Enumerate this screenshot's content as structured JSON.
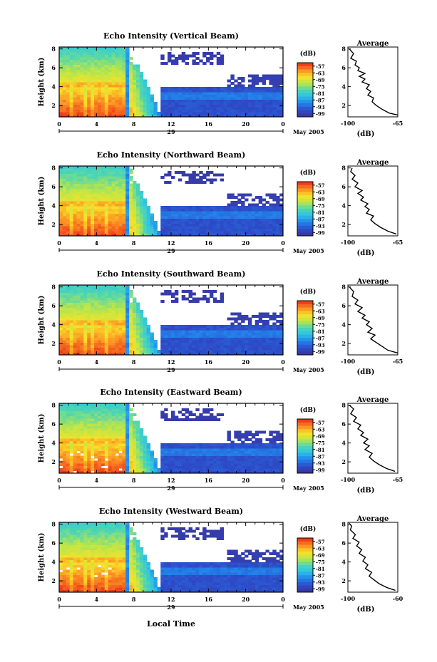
{
  "figure": {
    "xlabel": "Local Time",
    "date_label": "May 2005",
    "day_label": "29",
    "colorbar_unit": "(dB)",
    "avg_title": "Average",
    "avg_xlabel": "(dB)",
    "ylabel": "Height (km)"
  },
  "chart_data": [
    {
      "type": "heatmap",
      "title": "Echo Intensity (Vertical Beam)",
      "xlabel": "Local Time",
      "ylabel": "Height (km)",
      "x_ticks": [
        "0",
        "4",
        "8",
        "12",
        "16",
        "20",
        "0"
      ],
      "x_range": [
        0,
        24
      ],
      "y_ticks": [
        "2",
        "4",
        "6",
        "8"
      ],
      "y_range": [
        0.8,
        8.2
      ],
      "colorbar": {
        "label": "(dB)",
        "ticks": [
          "-57",
          "-63",
          "-69",
          "-75",
          "-81",
          "-87",
          "-93",
          "-99"
        ],
        "range": [
          -102,
          -54
        ]
      },
      "average_profile": {
        "title": "Average",
        "xlabel": "(dB)",
        "x_ticks": [
          "-100",
          "-65"
        ],
        "x_range": [
          -100,
          -65
        ],
        "y_ticks": [
          "2",
          "4",
          "6",
          "8"
        ],
        "points": [
          [
            -65,
            1.0
          ],
          [
            -71,
            1.2
          ],
          [
            -76,
            1.6
          ],
          [
            -80,
            2.0
          ],
          [
            -83,
            2.4
          ],
          [
            -82,
            2.8
          ],
          [
            -86,
            3.1
          ],
          [
            -84,
            3.5
          ],
          [
            -87,
            3.8
          ],
          [
            -85,
            4.2
          ],
          [
            -90,
            4.5
          ],
          [
            -88,
            4.8
          ],
          [
            -92,
            5.1
          ],
          [
            -88,
            5.4
          ],
          [
            -93,
            5.7
          ],
          [
            -92,
            6.0
          ],
          [
            -95,
            6.3
          ],
          [
            -94,
            6.7
          ],
          [
            -98,
            7.0
          ],
          [
            -96,
            7.5
          ],
          [
            -99,
            8.0
          ]
        ]
      }
    },
    {
      "type": "heatmap",
      "title": "Echo Intensity (Northward Beam)",
      "xlabel": "Local Time",
      "ylabel": "Height (km)",
      "x_ticks": [
        "0",
        "4",
        "8",
        "12",
        "16",
        "20",
        "0"
      ],
      "x_range": [
        0,
        24
      ],
      "y_ticks": [
        "2",
        "4",
        "6",
        "8"
      ],
      "y_range": [
        0.8,
        8.2
      ],
      "colorbar": {
        "label": "(dB)",
        "ticks": [
          "-57",
          "-63",
          "-69",
          "-75",
          "-81",
          "-87",
          "-93",
          "-99"
        ],
        "range": [
          -102,
          -54
        ]
      },
      "average_profile": {
        "title": "Average",
        "xlabel": "(dB)",
        "x_ticks": [
          "-100",
          "-65"
        ],
        "x_range": [
          -100,
          -65
        ],
        "y_ticks": [
          "2",
          "4",
          "6",
          "8"
        ],
        "points": [
          [
            -66,
            1.0
          ],
          [
            -72,
            1.3
          ],
          [
            -77,
            1.7
          ],
          [
            -81,
            2.1
          ],
          [
            -84,
            2.5
          ],
          [
            -82,
            2.9
          ],
          [
            -87,
            3.2
          ],
          [
            -85,
            3.6
          ],
          [
            -88,
            3.9
          ],
          [
            -86,
            4.2
          ],
          [
            -91,
            4.6
          ],
          [
            -89,
            4.9
          ],
          [
            -93,
            5.3
          ],
          [
            -90,
            5.6
          ],
          [
            -95,
            6.0
          ],
          [
            -93,
            6.4
          ],
          [
            -97,
            6.8
          ],
          [
            -95,
            7.2
          ],
          [
            -98,
            7.6
          ],
          [
            -97,
            8.0
          ]
        ]
      }
    },
    {
      "type": "heatmap",
      "title": "Echo Intensity (Southward Beam)",
      "xlabel": "Local Time",
      "ylabel": "Height (km)",
      "x_ticks": [
        "0",
        "4",
        "8",
        "12",
        "16",
        "20",
        "0"
      ],
      "x_range": [
        0,
        24
      ],
      "y_ticks": [
        "2",
        "4",
        "6",
        "8"
      ],
      "y_range": [
        0.8,
        8.2
      ],
      "colorbar": {
        "label": "(dB)",
        "ticks": [
          "-57",
          "-63",
          "-69",
          "-75",
          "-81",
          "-87",
          "-93",
          "-99"
        ],
        "range": [
          -102,
          -54
        ]
      },
      "average_profile": {
        "title": "Average",
        "xlabel": "(dB)",
        "x_ticks": [
          "-100",
          "-65"
        ],
        "x_range": [
          -100,
          -65
        ],
        "y_ticks": [
          "2",
          "4",
          "6",
          "8"
        ],
        "points": [
          [
            -65,
            1.0
          ],
          [
            -72,
            1.3
          ],
          [
            -76,
            1.7
          ],
          [
            -80,
            2.1
          ],
          [
            -84,
            2.5
          ],
          [
            -81,
            2.9
          ],
          [
            -86,
            3.2
          ],
          [
            -83,
            3.6
          ],
          [
            -87,
            4.0
          ],
          [
            -85,
            4.3
          ],
          [
            -90,
            4.7
          ],
          [
            -88,
            5.0
          ],
          [
            -93,
            5.4
          ],
          [
            -90,
            5.8
          ],
          [
            -95,
            6.2
          ],
          [
            -93,
            6.6
          ],
          [
            -97,
            7.0
          ],
          [
            -96,
            7.5
          ],
          [
            -99,
            8.0
          ]
        ]
      }
    },
    {
      "type": "heatmap",
      "title": "Echo Intensity (Eastward Beam)",
      "xlabel": "Local Time",
      "ylabel": "Height (km)",
      "x_ticks": [
        "0",
        "4",
        "8",
        "12",
        "16",
        "20",
        "0"
      ],
      "x_range": [
        0,
        24
      ],
      "y_ticks": [
        "2",
        "4",
        "6",
        "8"
      ],
      "y_range": [
        0.8,
        8.2
      ],
      "colorbar": {
        "label": "(dB)",
        "ticks": [
          "-57",
          "-63",
          "-69",
          "-75",
          "-81",
          "-87",
          "-93",
          "-99"
        ],
        "range": [
          -102,
          -54
        ]
      },
      "average_profile": {
        "title": "Average",
        "xlabel": "(dB)",
        "x_ticks": [
          "-100",
          "-65"
        ],
        "x_range": [
          -100,
          -65
        ],
        "y_ticks": [
          "2",
          "4",
          "6",
          "8"
        ],
        "points": [
          [
            -67,
            1.0
          ],
          [
            -73,
            1.3
          ],
          [
            -78,
            1.7
          ],
          [
            -82,
            2.1
          ],
          [
            -85,
            2.5
          ],
          [
            -83,
            2.9
          ],
          [
            -88,
            3.3
          ],
          [
            -85,
            3.7
          ],
          [
            -89,
            4.0
          ],
          [
            -86,
            4.4
          ],
          [
            -91,
            4.8
          ],
          [
            -89,
            5.1
          ],
          [
            -93,
            5.5
          ],
          [
            -91,
            5.9
          ],
          [
            -96,
            6.3
          ],
          [
            -94,
            6.7
          ],
          [
            -98,
            7.1
          ],
          [
            -96,
            7.6
          ],
          [
            -99,
            8.0
          ]
        ]
      }
    },
    {
      "type": "heatmap",
      "title": "Echo Intensity (Westward Beam)",
      "xlabel": "Local Time",
      "ylabel": "Height (km)",
      "x_ticks": [
        "0",
        "4",
        "8",
        "12",
        "16",
        "20",
        "0"
      ],
      "x_range": [
        0,
        24
      ],
      "y_ticks": [
        "2",
        "4",
        "6",
        "8"
      ],
      "y_range": [
        0.8,
        8.2
      ],
      "colorbar": {
        "label": "(dB)",
        "ticks": [
          "-57",
          "-63",
          "-69",
          "-75",
          "-81",
          "-87",
          "-93",
          "-99"
        ],
        "range": [
          -102,
          -54
        ]
      },
      "average_profile": {
        "title": "Average",
        "xlabel": "(dB)",
        "x_ticks": [
          "-100",
          "-60"
        ],
        "x_range": [
          -100,
          -60
        ],
        "y_ticks": [
          "2",
          "4",
          "6",
          "8"
        ],
        "points": [
          [
            -62,
            1.0
          ],
          [
            -69,
            1.3
          ],
          [
            -75,
            1.7
          ],
          [
            -79,
            2.1
          ],
          [
            -83,
            2.5
          ],
          [
            -81,
            2.9
          ],
          [
            -86,
            3.3
          ],
          [
            -84,
            3.7
          ],
          [
            -88,
            4.1
          ],
          [
            -86,
            4.5
          ],
          [
            -91,
            4.9
          ],
          [
            -89,
            5.3
          ],
          [
            -93,
            5.7
          ],
          [
            -91,
            6.1
          ],
          [
            -96,
            6.5
          ],
          [
            -94,
            6.9
          ],
          [
            -98,
            7.4
          ],
          [
            -97,
            7.8
          ],
          [
            -99,
            8.1
          ]
        ]
      }
    }
  ]
}
